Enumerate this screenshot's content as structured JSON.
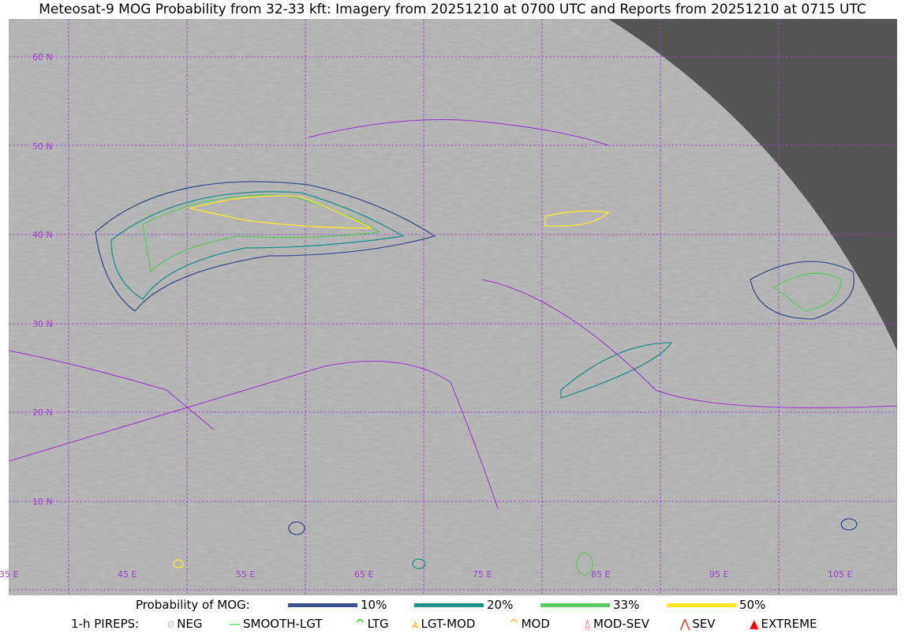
{
  "title": "Meteosat-9 MOG Probability from 32-33 kft: Imagery from 20251210 at 0700 UTC and Reports from 20251210 at 0715 UTC",
  "map": {
    "lat_labels": [
      "60 N",
      "50 N",
      "40 N",
      "30 N",
      "20 N",
      "10 N"
    ],
    "lon_labels": [
      "35 E",
      "45 E",
      "55 E",
      "65 E",
      "75 E",
      "85 E",
      "95 E",
      "105 E"
    ],
    "grid_color": "#a040d0",
    "space_color": "#555555"
  },
  "legend": {
    "prob_label": "Probability of MOG:",
    "levels": [
      {
        "label": "10%",
        "color": "#3b4f8a"
      },
      {
        "label": "20%",
        "color": "#22908a"
      },
      {
        "label": "33%",
        "color": "#5ec962"
      },
      {
        "label": "50%",
        "color": "#fde725"
      }
    ],
    "pirep_label": "1-h PIREPS:",
    "pireps": [
      {
        "label": "NEG",
        "icon": "neg-icon",
        "color": "#c8c8ff"
      },
      {
        "label": "SMOOTH-LGT",
        "icon": "smooth-lgt-icon",
        "color": "#00ee00"
      },
      {
        "label": "LTG",
        "icon": "ltg-icon",
        "color": "#00cc00"
      },
      {
        "label": "LGT-MOD",
        "icon": "lgt-mod-icon",
        "color": "#ffaa00"
      },
      {
        "label": "MOD",
        "icon": "mod-icon",
        "color": "#ffaa00"
      },
      {
        "label": "MOD-SEV",
        "icon": "mod-sev-icon",
        "color": "#ff2020"
      },
      {
        "label": "SEV",
        "icon": "sev-icon",
        "color": "#ff2020"
      },
      {
        "label": "EXTREME",
        "icon": "extreme-icon",
        "color": "#ff0000"
      }
    ]
  }
}
